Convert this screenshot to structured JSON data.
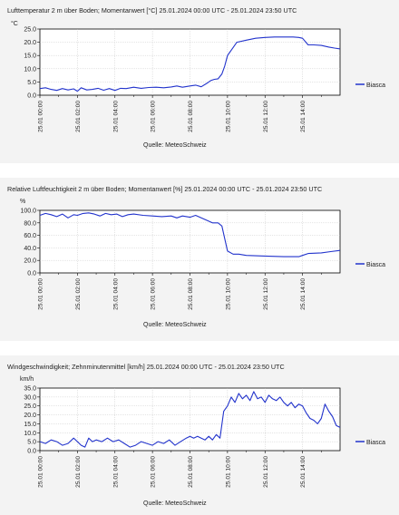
{
  "source_label": "Quelle: MeteoSchweiz",
  "colors": {
    "line": "#2233cc",
    "axis": "#000000",
    "grid": "#bbbbbb",
    "band": "#f3f3f3"
  },
  "x_tick_labels": [
    "25.01 00:00",
    "25.01 02:00",
    "25.01 04:00",
    "25.01 06:00",
    "25.01 08:00",
    "25.01 10:00",
    "25.01 12:00",
    "25.01 14:00"
  ],
  "chart_data": [
    {
      "type": "line",
      "title": "Lufttemperatur 2 m über Boden; Momentanwert [°C]  25.01.2024 00:00 UTC - 25.01.2024 23:50 UTC",
      "ylabel": "°C",
      "ylim": [
        0,
        25
      ],
      "yticks": [
        "25.0",
        "20.0",
        "15.0",
        "10.0",
        "5.0",
        "0.0"
      ],
      "ytick_values": [
        25,
        20,
        15,
        10,
        5,
        0
      ],
      "xlim": [
        0,
        16
      ],
      "xlabel": "",
      "legend": "Biasca",
      "series": [
        {
          "name": "Biasca",
          "x": [
            0,
            0.3,
            0.6,
            0.9,
            1.2,
            1.5,
            1.8,
            2.0,
            2.2,
            2.5,
            2.8,
            3.1,
            3.4,
            3.7,
            4.0,
            4.3,
            4.6,
            5.0,
            5.4,
            5.8,
            6.2,
            6.6,
            7.0,
            7.3,
            7.6,
            8.0,
            8.3,
            8.6,
            8.9,
            9.1,
            9.3,
            9.5,
            9.7,
            9.85,
            10.0,
            10.5,
            11.0,
            11.5,
            12.0,
            12.5,
            13.0,
            13.5,
            13.8,
            14.0,
            14.3,
            14.6,
            15.0,
            15.4,
            15.7,
            16.0
          ],
          "values": [
            2.5,
            2.8,
            2.2,
            1.8,
            2.5,
            2.0,
            2.4,
            1.5,
            2.8,
            2.0,
            2.2,
            2.6,
            1.9,
            2.5,
            1.8,
            2.6,
            2.5,
            3.0,
            2.6,
            2.9,
            3.0,
            2.8,
            3.1,
            3.5,
            3.0,
            3.5,
            3.8,
            3.2,
            4.5,
            5.5,
            6.0,
            6.2,
            8.0,
            11.0,
            15.0,
            20.0,
            20.8,
            21.5,
            21.8,
            22.0,
            22.0,
            22.0,
            21.8,
            21.5,
            19.0,
            19.0,
            18.8,
            18.2,
            17.8,
            17.5
          ]
        }
      ]
    },
    {
      "type": "line",
      "title": "Relative Luftfeuchtigkeit 2 m über Boden; Momentanwert [%]  25.01.2024 00:00 UTC - 25.01.2024 23:50 UTC",
      "ylabel": "%",
      "ylim": [
        0,
        100
      ],
      "yticks": [
        "100.0",
        "80.0",
        "60.0",
        "40.0",
        "20.0",
        "0.0"
      ],
      "ytick_values": [
        100,
        80,
        60,
        40,
        20,
        0
      ],
      "xlim": [
        0,
        16
      ],
      "xlabel": "",
      "legend": "Biasca",
      "series": [
        {
          "name": "Biasca",
          "x": [
            0,
            0.3,
            0.6,
            0.9,
            1.2,
            1.5,
            1.8,
            2.0,
            2.3,
            2.6,
            2.9,
            3.2,
            3.5,
            3.8,
            4.1,
            4.4,
            4.7,
            5.0,
            5.5,
            6.0,
            6.5,
            7.0,
            7.3,
            7.6,
            8.0,
            8.3,
            8.6,
            8.9,
            9.2,
            9.5,
            9.7,
            9.85,
            10.0,
            10.3,
            10.6,
            11.0,
            12.0,
            13.0,
            13.8,
            14.0,
            14.3,
            15.0,
            15.5,
            16.0
          ],
          "values": [
            92,
            95,
            93,
            90,
            94,
            88,
            93,
            92,
            95,
            96,
            94,
            91,
            95,
            93,
            94,
            90,
            93,
            94,
            92,
            91,
            90,
            91,
            88,
            91,
            89,
            92,
            88,
            84,
            80,
            80,
            75,
            55,
            35,
            30,
            30,
            28,
            27,
            26,
            26,
            28,
            31,
            32,
            34,
            36
          ]
        }
      ]
    },
    {
      "type": "line",
      "title": "Windgeschwindigkeit; Zehnminutenmittel [km/h]  25.01.2024 00:00 UTC - 25.01.2024 23:50 UTC",
      "ylabel": "km/h",
      "ylim": [
        0,
        35
      ],
      "yticks": [
        "35.0",
        "30.0",
        "25.0",
        "20.0",
        "15.0",
        "10.0",
        "5.0",
        "0.0"
      ],
      "ytick_values": [
        35,
        30,
        25,
        20,
        15,
        10,
        5,
        0
      ],
      "xlim": [
        0,
        16
      ],
      "xlabel": "",
      "legend": "Biasca",
      "series": [
        {
          "name": "Biasca",
          "x": [
            0,
            0.3,
            0.6,
            0.9,
            1.2,
            1.5,
            1.8,
            2.0,
            2.2,
            2.4,
            2.6,
            2.8,
            3.0,
            3.3,
            3.6,
            3.9,
            4.2,
            4.5,
            4.8,
            5.1,
            5.4,
            5.7,
            6.0,
            6.3,
            6.6,
            6.9,
            7.2,
            7.5,
            7.8,
            8.0,
            8.2,
            8.4,
            8.6,
            8.8,
            9.0,
            9.2,
            9.4,
            9.6,
            9.8,
            10.0,
            10.2,
            10.4,
            10.6,
            10.8,
            11.0,
            11.2,
            11.4,
            11.6,
            11.8,
            12.0,
            12.2,
            12.4,
            12.6,
            12.8,
            13.0,
            13.2,
            13.4,
            13.6,
            13.8,
            14.0,
            14.2,
            14.4,
            14.6,
            14.8,
            15.0,
            15.2,
            15.4,
            15.6,
            15.8,
            16.0
          ],
          "values": [
            5,
            4,
            6,
            5,
            3,
            4,
            7,
            5,
            3,
            2,
            7,
            5,
            6,
            5,
            7,
            5,
            6,
            4,
            2,
            3,
            5,
            4,
            3,
            5,
            4,
            6,
            3,
            5,
            7,
            8,
            7,
            8,
            7,
            6,
            8,
            6,
            9,
            7,
            22,
            25,
            30,
            27,
            32,
            29,
            31,
            28,
            33,
            29,
            30,
            27,
            31,
            29,
            28,
            30,
            27,
            25,
            27,
            24,
            26,
            25,
            21,
            18,
            17,
            15,
            18,
            26,
            22,
            19,
            14,
            13
          ]
        }
      ]
    }
  ]
}
